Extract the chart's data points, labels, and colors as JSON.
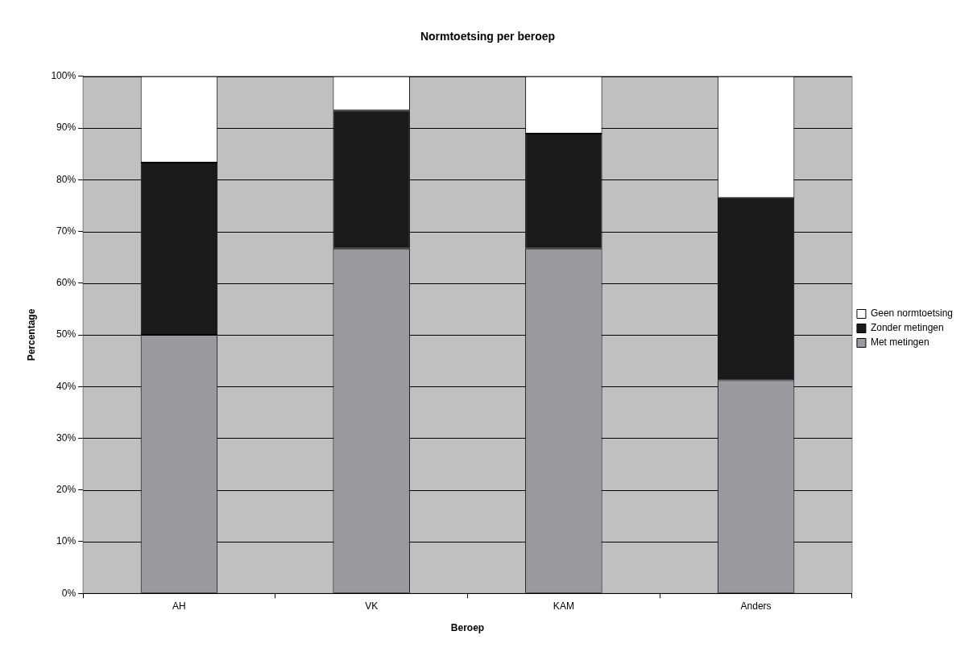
{
  "chart_data": {
    "type": "bar",
    "title": "Normtoetsing per beroep",
    "xlabel": "Beroep",
    "ylabel": "Percentage",
    "categories": [
      "AH",
      "VK",
      "KAM",
      "Anders"
    ],
    "stacked": true,
    "series": [
      {
        "name": "Met metingen",
        "color": "#9a9a9e",
        "values": [
          50,
          66.7,
          66.7,
          41.2
        ]
      },
      {
        "name": "Zonder metingen",
        "color": "#1a1a1a",
        "values": [
          33.3,
          26.7,
          22.2,
          35.3
        ]
      },
      {
        "name": "Geen normtoetsing",
        "color": "#ffffff",
        "values": [
          16.7,
          6.6,
          11.1,
          23.5
        ]
      }
    ],
    "ylim": [
      0,
      100
    ],
    "yticks": [
      {
        "value": 0,
        "label": "0%"
      },
      {
        "value": 10,
        "label": "10%"
      },
      {
        "value": 20,
        "label": "20%"
      },
      {
        "value": 30,
        "label": "30%"
      },
      {
        "value": 40,
        "label": "40%"
      },
      {
        "value": 50,
        "label": "50%"
      },
      {
        "value": 60,
        "label": "60%"
      },
      {
        "value": 70,
        "label": "70%"
      },
      {
        "value": 80,
        "label": "80%"
      },
      {
        "value": 90,
        "label": "90%"
      },
      {
        "value": 100,
        "label": "100%"
      }
    ],
    "grid": "y",
    "legend": "right"
  }
}
